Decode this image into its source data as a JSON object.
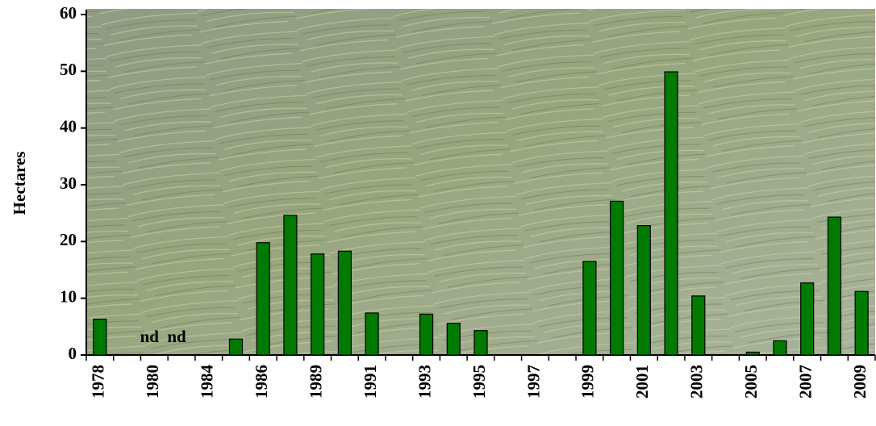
{
  "chart_data": {
    "type": "bar",
    "y_label": "Hectares",
    "categories": [
      "1978",
      null,
      "1980",
      null,
      "1984",
      null,
      "1986",
      null,
      "1989",
      null,
      "1991",
      null,
      "1993",
      null,
      "1995",
      null,
      "1997",
      null,
      "1999",
      null,
      "2001",
      null,
      "2003",
      null,
      "2005",
      null,
      "2007",
      null,
      "2009"
    ],
    "values": [
      6.3,
      null,
      null,
      null,
      null,
      2.8,
      19.8,
      24.6,
      17.8,
      18.3,
      7.4,
      null,
      7.2,
      5.6,
      4.3,
      null,
      null,
      null,
      16.5,
      27.1,
      22.8,
      49.9,
      10.4,
      null,
      0.5,
      2.5,
      12.7,
      24.3,
      11.2
    ],
    "value_labels": [
      null,
      null,
      "nd",
      "nd",
      null,
      null,
      null,
      null,
      null,
      null,
      null,
      null,
      null,
      null,
      null,
      null,
      null,
      null,
      null,
      null,
      null,
      null,
      null,
      null,
      null,
      null,
      null,
      null,
      null
    ],
    "color": "#007a00",
    "ylim": [
      0,
      60
    ],
    "yticks": [
      0,
      10,
      20,
      30,
      40,
      50,
      60
    ]
  }
}
